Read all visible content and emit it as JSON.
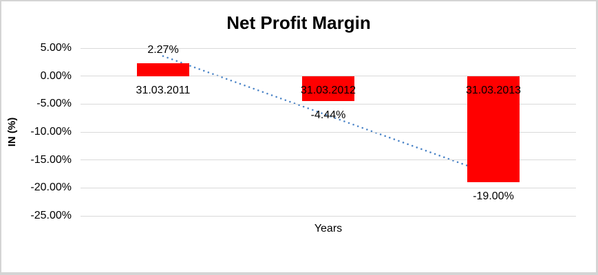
{
  "chart_data": {
    "type": "bar",
    "title": "Net Profit Margin",
    "xlabel": "Years",
    "ylabel": "IN (%)",
    "categories": [
      "31.03.2011",
      "31.03.2012",
      "31.03.2013"
    ],
    "values": [
      2.27,
      -4.44,
      -19.0
    ],
    "data_labels": [
      "2.27%",
      "-4.44%",
      "-19.00%"
    ],
    "yticks": [
      {
        "label": "5.00%",
        "value": 5
      },
      {
        "label": "0.00%",
        "value": 0
      },
      {
        "label": "-5.00%",
        "value": -5
      },
      {
        "label": "-10.00%",
        "value": -10
      },
      {
        "label": "-15.00%",
        "value": -15
      },
      {
        "label": "-20.00%",
        "value": -20
      },
      {
        "label": "-25.00%",
        "value": -25
      }
    ],
    "ylim": [
      -25,
      5
    ],
    "grid": "horizontal",
    "legend": "none",
    "bar_color": "#ff0000",
    "gridline_color": "#d9d9d9",
    "trendline": {
      "type": "linear",
      "style": "dotted",
      "color": "#4e86c8"
    }
  }
}
